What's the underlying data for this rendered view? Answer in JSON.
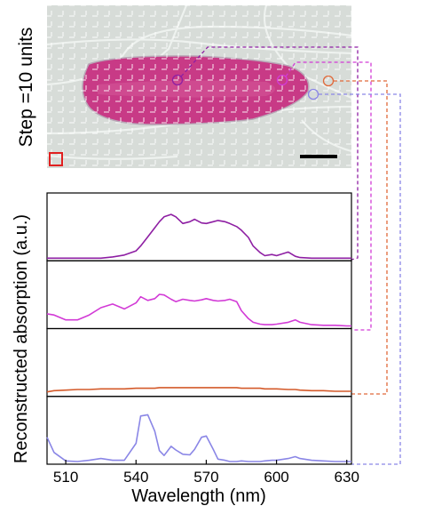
{
  "figure": {
    "step_label": "Step =10 units",
    "ylabel": "Reconstructed absorption (a.u.)",
    "xlabel": "Wavelength (nm)"
  },
  "micrograph": {
    "background_color": "#d7dcd8",
    "cell_color": "#c83a86",
    "grid_color": "#ffffff",
    "scale_bar_color": "#000000",
    "step_marker_color": "#e02020"
  },
  "chart_data": {
    "type": "line",
    "title": "",
    "xlabel": "Wavelength (nm)",
    "ylabel": "Reconstructed absorption (a.u.)",
    "xlim": [
      502,
      632
    ],
    "xticks": [
      510,
      540,
      570,
      600,
      630
    ],
    "x": [
      502,
      505,
      510,
      515,
      520,
      525,
      530,
      535,
      540,
      542,
      545,
      548,
      550,
      552,
      555,
      557,
      560,
      563,
      565,
      568,
      570,
      573,
      575,
      578,
      580,
      583,
      585,
      588,
      590,
      593,
      595,
      598,
      600,
      605,
      608,
      610,
      615,
      620,
      625,
      630,
      632
    ],
    "grid": false,
    "legend": "none",
    "series": [
      {
        "color": "#8e1fa3",
        "values": [
          0.0,
          0.0,
          0.0,
          0.0,
          0.0,
          0.0,
          0.02,
          0.05,
          0.12,
          0.2,
          0.35,
          0.5,
          0.6,
          0.68,
          0.72,
          0.68,
          0.57,
          0.6,
          0.64,
          0.58,
          0.57,
          0.6,
          0.62,
          0.6,
          0.57,
          0.52,
          0.46,
          0.34,
          0.2,
          0.09,
          0.04,
          0.06,
          0.04,
          0.1,
          0.03,
          0.01,
          0.0,
          0.0,
          0.0,
          0.0,
          0.0
        ]
      },
      {
        "color": "#d23ad6",
        "values": [
          0.2,
          0.18,
          0.1,
          0.1,
          0.18,
          0.3,
          0.36,
          0.28,
          0.38,
          0.48,
          0.42,
          0.45,
          0.52,
          0.51,
          0.44,
          0.4,
          0.44,
          0.42,
          0.41,
          0.43,
          0.45,
          0.42,
          0.41,
          0.42,
          0.44,
          0.4,
          0.25,
          0.12,
          0.06,
          0.03,
          0.02,
          0.02,
          0.03,
          0.06,
          0.1,
          0.06,
          0.02,
          0.01,
          0.01,
          0.0,
          0.0
        ]
      },
      {
        "color": "#d45a2a",
        "values": [
          0.03,
          0.05,
          0.06,
          0.07,
          0.07,
          0.08,
          0.08,
          0.08,
          0.09,
          0.09,
          0.09,
          0.09,
          0.1,
          0.1,
          0.1,
          0.1,
          0.1,
          0.1,
          0.1,
          0.1,
          0.1,
          0.1,
          0.1,
          0.1,
          0.1,
          0.1,
          0.09,
          0.09,
          0.09,
          0.09,
          0.08,
          0.08,
          0.08,
          0.07,
          0.07,
          0.06,
          0.05,
          0.05,
          0.04,
          0.04,
          0.04
        ]
      },
      {
        "color": "#8a86e6",
        "values": [
          0.4,
          0.15,
          0.01,
          0.0,
          0.02,
          0.05,
          0.02,
          0.02,
          0.3,
          0.75,
          0.77,
          0.5,
          0.18,
          0.1,
          0.25,
          0.19,
          0.12,
          0.11,
          0.2,
          0.4,
          0.42,
          0.2,
          0.04,
          0.02,
          0.0,
          0.0,
          0.01,
          0.0,
          0.0,
          0.0,
          0.01,
          0.02,
          0.02,
          0.05,
          0.08,
          0.05,
          0.02,
          0.01,
          0.0,
          0.0,
          0.0
        ]
      }
    ]
  }
}
